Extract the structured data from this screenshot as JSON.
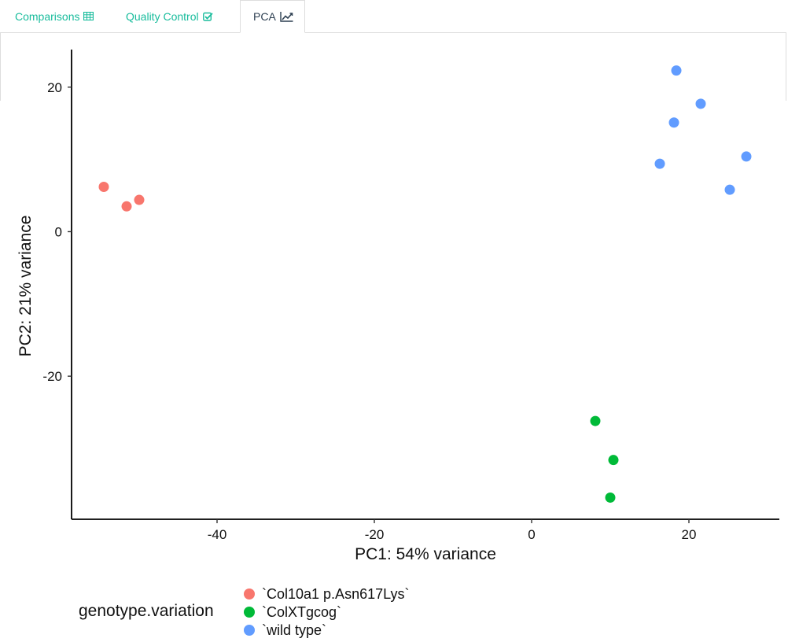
{
  "tabs": [
    {
      "label": "Comparisons",
      "icon": "table-icon",
      "active": false
    },
    {
      "label": "Quality Control",
      "icon": "check-square-icon",
      "active": false
    },
    {
      "label": "PCA",
      "icon": "line-chart-icon",
      "active": true
    }
  ],
  "colors": {
    "accent": "#18bc9c",
    "active_tab_text": "#2c3e50",
    "tab_border": "#dddddd"
  },
  "chart_data": {
    "type": "scatter",
    "xlabel": "PC1: 54% variance",
    "ylabel": "PC2: 21% variance",
    "xlim": [
      -58.5,
      31.5
    ],
    "ylim": [
      -39.8,
      25.2
    ],
    "xticks": [
      -40,
      -20,
      0,
      20
    ],
    "yticks": [
      -20,
      0,
      20
    ],
    "xtick_labels": [
      "-40",
      "-20",
      "0",
      "20"
    ],
    "ytick_labels": [
      "-20",
      "0",
      "20"
    ],
    "grid": false,
    "legend": {
      "title": "genotype.variation",
      "position": "bottom"
    },
    "series": [
      {
        "name": "`Col10a1 p.Asn617Lys`",
        "color": "#f8766d",
        "points": [
          [
            -54.4,
            6.2
          ],
          [
            -51.5,
            3.5
          ],
          [
            -49.9,
            4.4
          ]
        ]
      },
      {
        "name": "`ColXTgcog`",
        "color": "#00ba38",
        "points": [
          [
            8.1,
            -26.2
          ],
          [
            10.4,
            -31.6
          ],
          [
            10.0,
            -36.8
          ]
        ]
      },
      {
        "name": "`wild type`",
        "color": "#619cff",
        "points": [
          [
            18.4,
            22.3
          ],
          [
            21.5,
            17.7
          ],
          [
            18.1,
            15.1
          ],
          [
            16.3,
            9.4
          ],
          [
            27.3,
            10.4
          ],
          [
            25.2,
            5.8
          ]
        ]
      }
    ]
  }
}
